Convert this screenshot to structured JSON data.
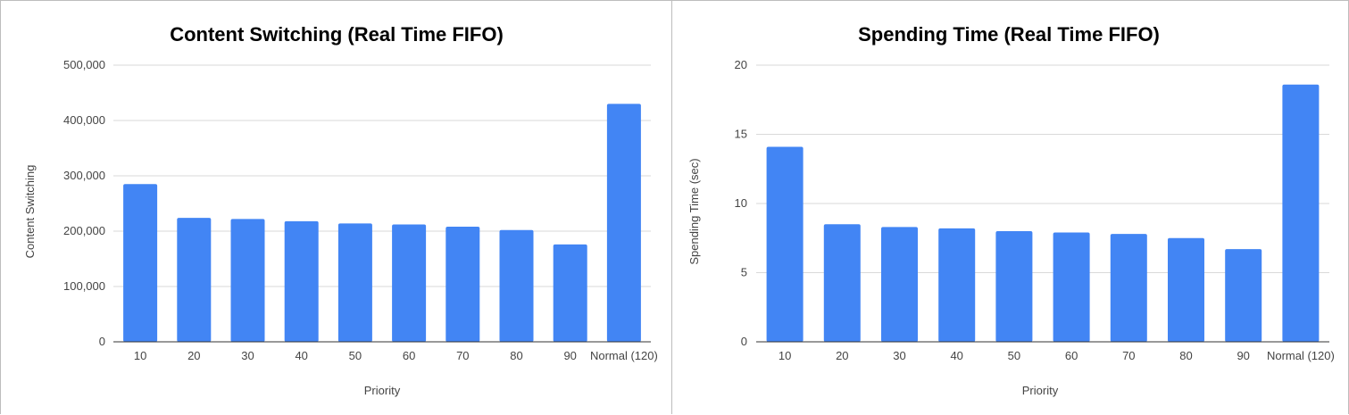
{
  "chart_data": [
    {
      "type": "bar",
      "title": "Content Switching (Real Time FIFO)",
      "xlabel": "Priority",
      "ylabel": "Content Switching",
      "categories": [
        "10",
        "20",
        "30",
        "40",
        "50",
        "60",
        "70",
        "80",
        "90",
        "Normal (120)"
      ],
      "series": [
        {
          "values": [
            285000,
            224000,
            222000,
            218000,
            214000,
            212000,
            208000,
            202000,
            176000,
            430000
          ]
        }
      ],
      "ylim": [
        0,
        500000
      ],
      "yticks": [
        0,
        100000,
        200000,
        300000,
        400000,
        500000
      ],
      "ytick_labels": [
        "0",
        "100,000",
        "200,000",
        "300,000",
        "400,000",
        "500,000"
      ],
      "grid": true,
      "bar_color": "#4285f4"
    },
    {
      "type": "bar",
      "title": "Spending Time (Real Time FIFO)",
      "xlabel": "Priority",
      "ylabel": "Spending Time (sec)",
      "categories": [
        "10",
        "20",
        "30",
        "40",
        "50",
        "60",
        "70",
        "80",
        "90",
        "Normal (120)"
      ],
      "series": [
        {
          "values": [
            14.1,
            8.5,
            8.3,
            8.2,
            8.0,
            7.9,
            7.8,
            7.5,
            6.7,
            18.6
          ]
        }
      ],
      "ylim": [
        0,
        20
      ],
      "yticks": [
        0,
        5,
        10,
        15,
        20
      ],
      "ytick_labels": [
        "0",
        "5",
        "10",
        "15",
        "20"
      ],
      "grid": true,
      "bar_color": "#4285f4"
    }
  ]
}
